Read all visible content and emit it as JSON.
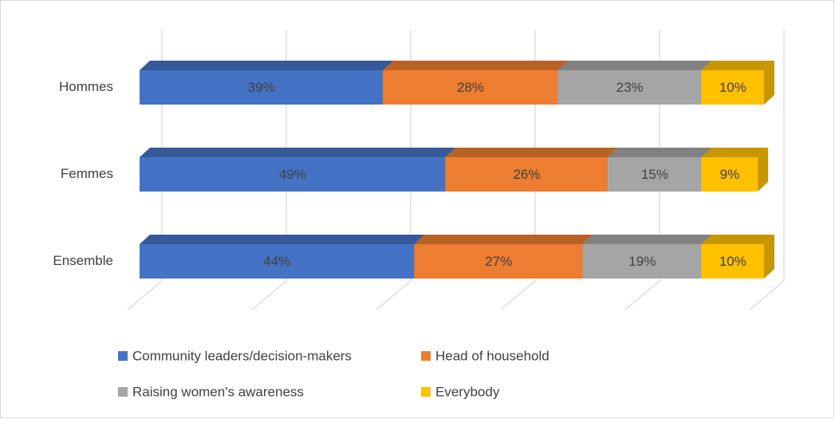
{
  "chart_data": {
    "type": "bar",
    "orientation": "horizontal",
    "stacked": true,
    "three_d": true,
    "categories": [
      "Hommes",
      "Femmes",
      "Ensemble"
    ],
    "series": [
      {
        "name": "Community leaders/decision-makers",
        "color": "#4472c4",
        "values": [
          39,
          49,
          44
        ],
        "value_labels": [
          "39%",
          "49%",
          "44%"
        ]
      },
      {
        "name": "Head of household",
        "color": "#ed7d31",
        "values": [
          28,
          26,
          27
        ],
        "value_labels": [
          "28%",
          "26%",
          "27%"
        ]
      },
      {
        "name": "Raising women's awareness",
        "color": "#a5a5a5",
        "values": [
          23,
          15,
          19
        ],
        "value_labels": [
          "23%",
          "15%",
          "19%"
        ]
      },
      {
        "name": "Everybody",
        "color": "#ffc000",
        "values": [
          10,
          9,
          10
        ],
        "value_labels": [
          "10%",
          "9%",
          "10%"
        ]
      }
    ],
    "xlim": [
      0,
      100
    ],
    "xticks": [
      0,
      20,
      40,
      60,
      80,
      100
    ],
    "grid": true,
    "legend": "bottom"
  }
}
